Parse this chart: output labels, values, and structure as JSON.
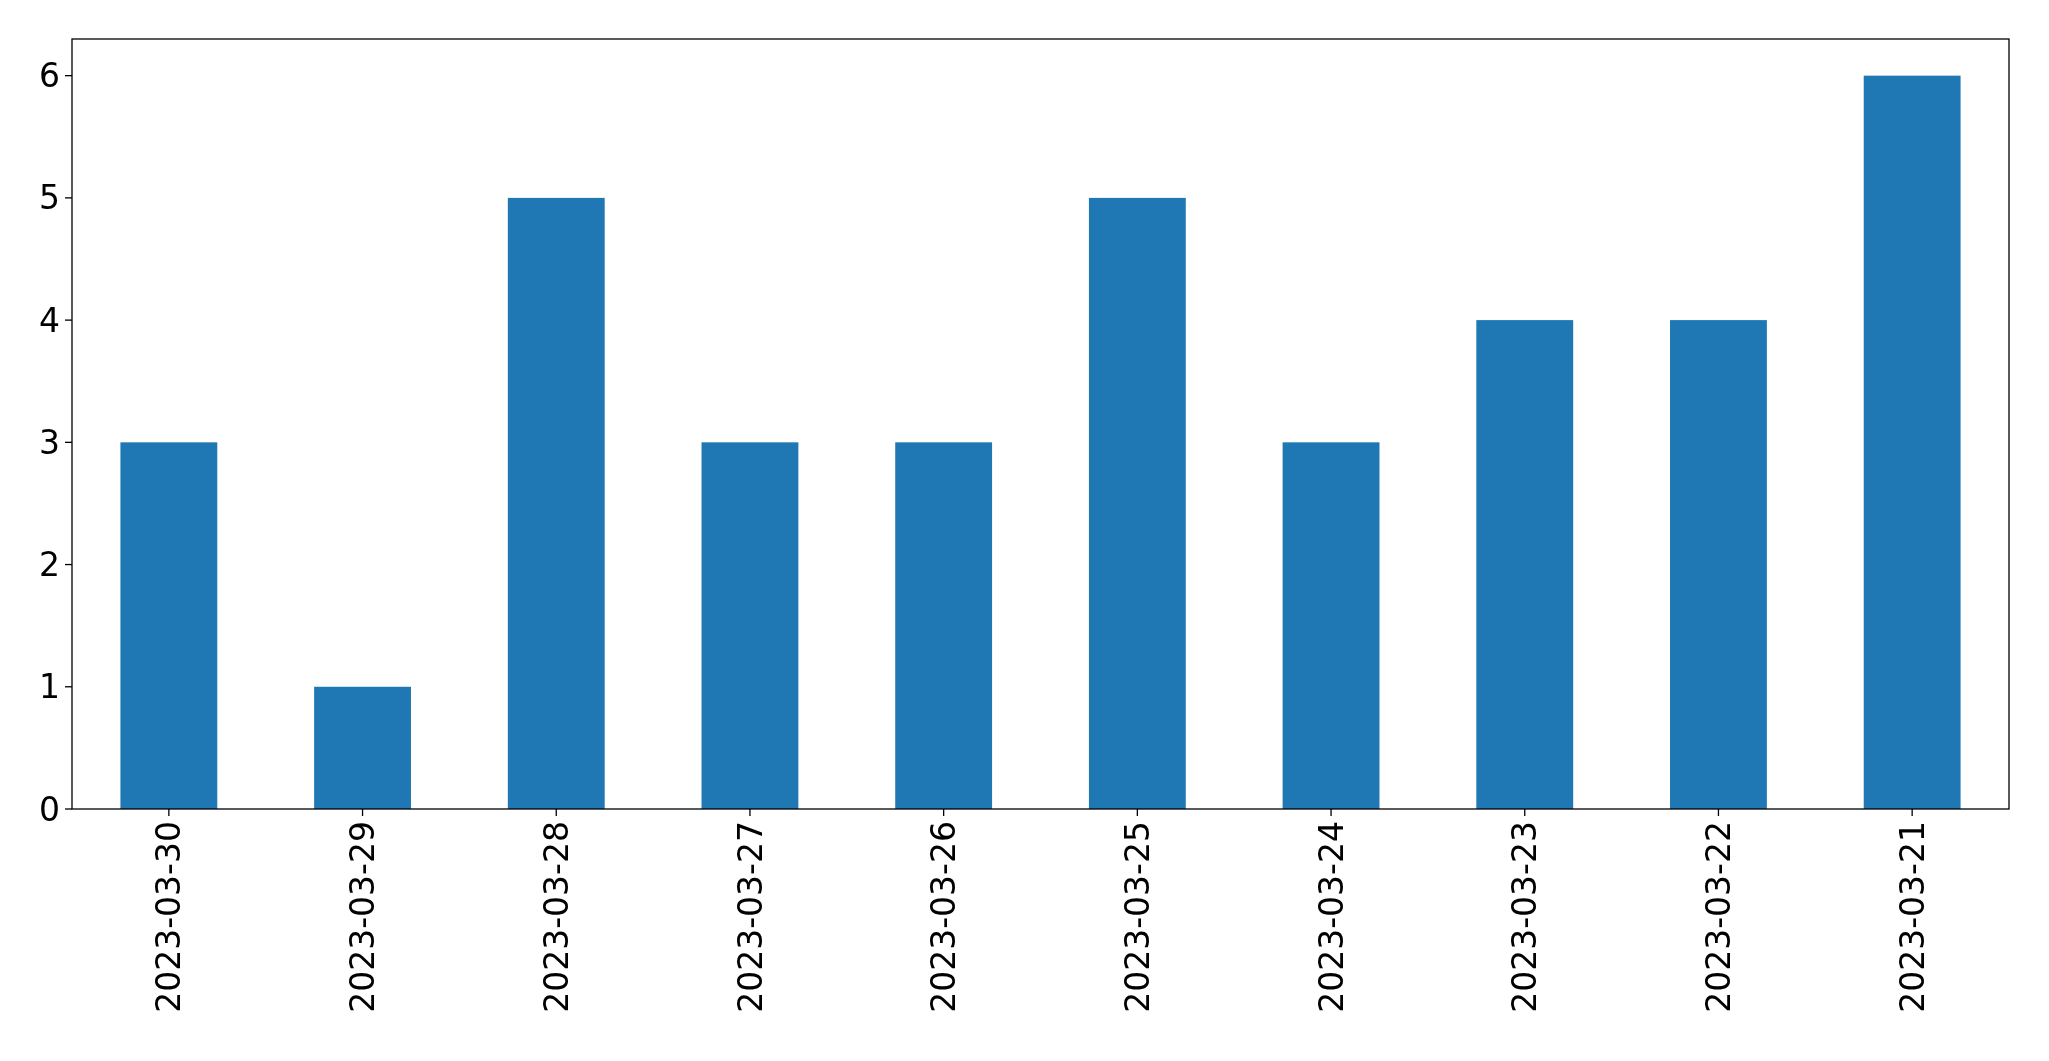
{
  "chart_data": {
    "type": "bar",
    "categories": [
      "2023-03-30",
      "2023-03-29",
      "2023-03-28",
      "2023-03-27",
      "2023-03-26",
      "2023-03-25",
      "2023-03-24",
      "2023-03-23",
      "2023-03-22",
      "2023-03-21"
    ],
    "values": [
      3,
      1,
      5,
      3,
      3,
      5,
      3,
      4,
      4,
      6
    ],
    "color": "#1f77b4",
    "ylim": [
      0,
      6.3
    ],
    "yticks": [
      0,
      1,
      2,
      3,
      4,
      5,
      6
    ]
  }
}
